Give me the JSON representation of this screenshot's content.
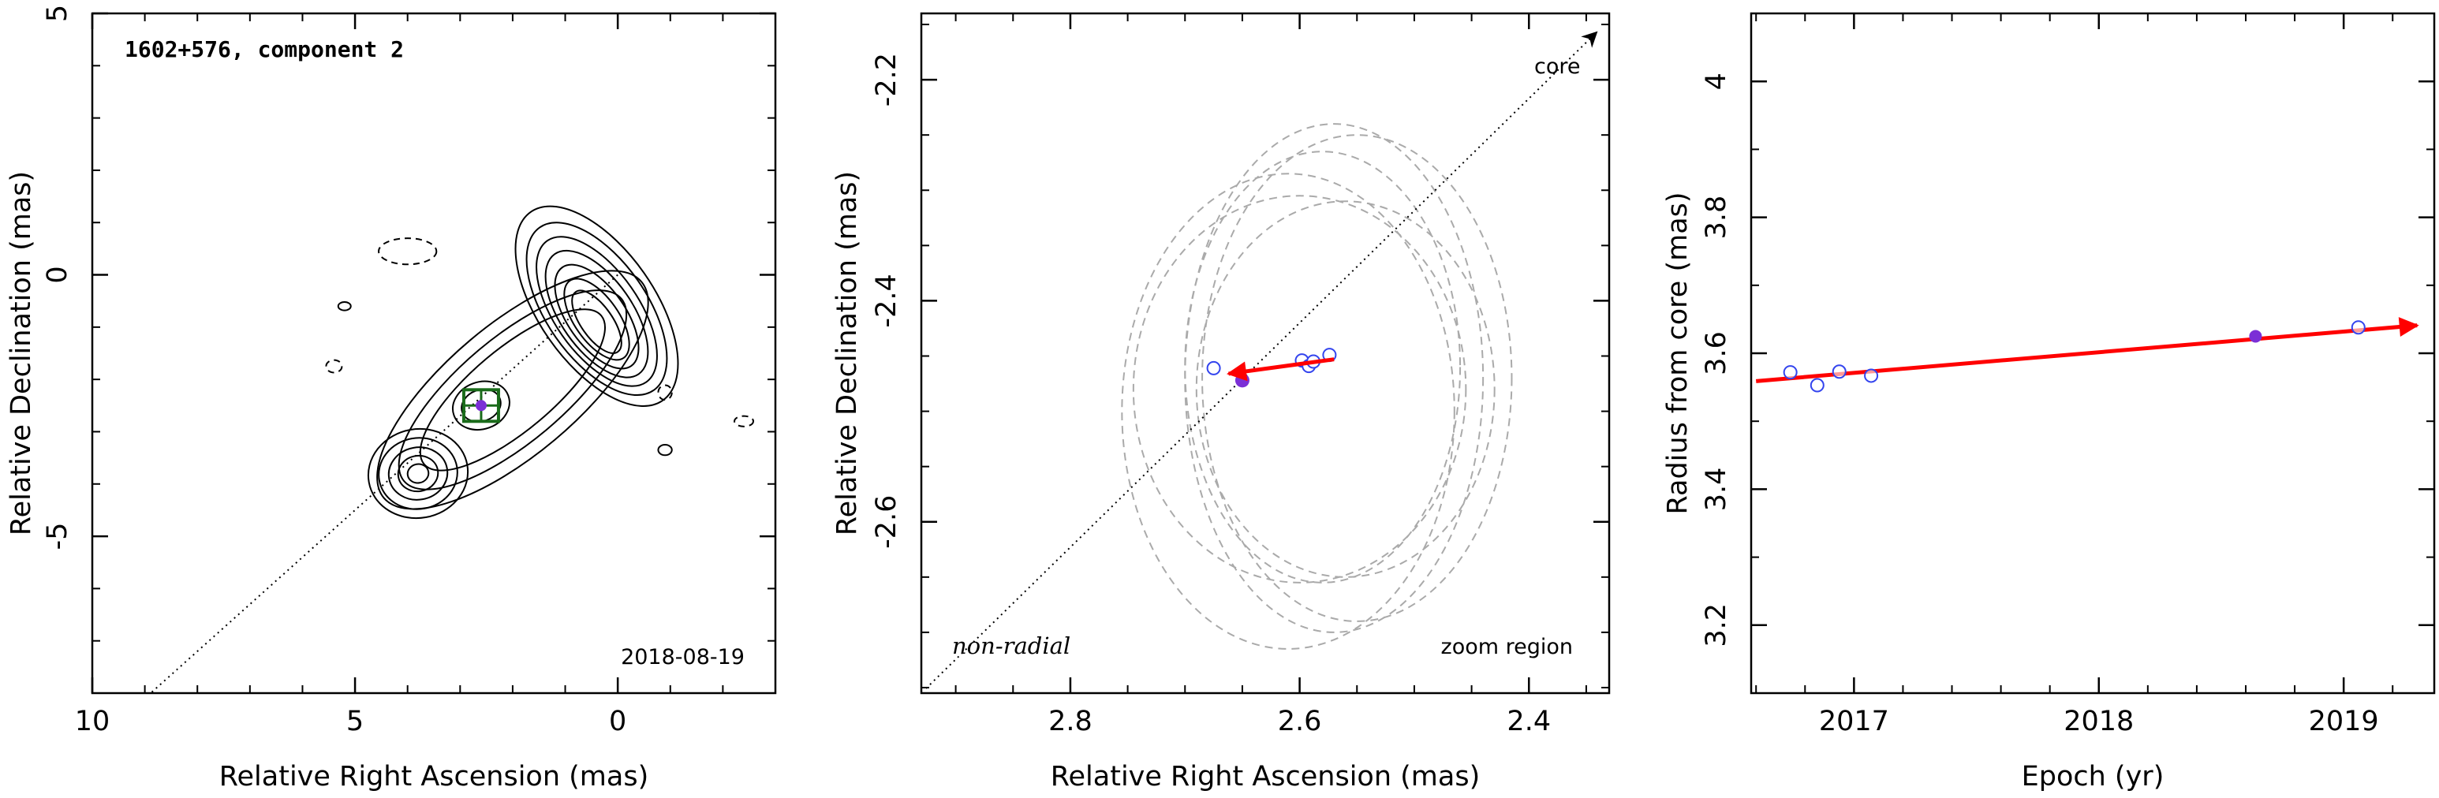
{
  "chart_data": [
    {
      "type": "contour",
      "title": "1602+576, component 2",
      "date": "2018-08-19",
      "xlabel": "Relative Right Ascension (mas)",
      "ylabel": "Relative Declination (mas)",
      "xlim": [
        10,
        -3
      ],
      "ylim": [
        -8,
        5
      ],
      "xticks": [
        10,
        5,
        0
      ],
      "yticks": [
        5,
        0,
        -5
      ],
      "marker": {
        "x": 2.6,
        "y": -2.5
      },
      "jet_direction_line": [
        [
          0,
          0
        ],
        [
          10,
          -9
        ]
      ],
      "colors": {
        "box": "#1a6b1a",
        "marker": "#7b2fd6",
        "contour": "#000000"
      }
    },
    {
      "type": "scatter",
      "region": "zoom region",
      "note": "non-radial",
      "core_label": "core",
      "xlabel": "Relative Right Ascension (mas)",
      "ylabel": "Relative Declination (mas)",
      "xlim": [
        2.93,
        2.33
      ],
      "ylim": [
        -2.755,
        -2.14
      ],
      "xticks": [
        "2.8",
        "2.6",
        "2.4"
      ],
      "yticks": [
        "-2.2",
        "-2.4",
        "-2.6"
      ],
      "points_open": [
        {
          "x": 2.675,
          "y": -2.461
        },
        {
          "x": 2.598,
          "y": -2.454
        },
        {
          "x": 2.592,
          "y": -2.459
        },
        {
          "x": 2.588,
          "y": -2.455
        },
        {
          "x": 2.574,
          "y": -2.449
        }
      ],
      "point_filled": {
        "x": 2.65,
        "y": -2.472
      },
      "motion_arrow": {
        "from": {
          "x": 2.57,
          "y": -2.453
        },
        "to": {
          "x": 2.662,
          "y": -2.466
        }
      },
      "ellipses_dashed": [
        {
          "cx": 2.6,
          "cy": -2.48,
          "rx": 0.145,
          "ry": 0.175
        },
        {
          "cx": 2.56,
          "cy": -2.48,
          "rx": 0.13,
          "ry": 0.17
        },
        {
          "cx": 2.57,
          "cy": -2.47,
          "rx": 0.13,
          "ry": 0.23
        },
        {
          "cx": 2.55,
          "cy": -2.47,
          "rx": 0.135,
          "ry": 0.22
        },
        {
          "cx": 2.58,
          "cy": -2.46,
          "rx": 0.12,
          "ry": 0.195
        },
        {
          "cx": 2.61,
          "cy": -2.5,
          "rx": 0.145,
          "ry": 0.215
        }
      ],
      "colors": {
        "arrow": "#ff0000",
        "open": "#3344ee",
        "filled": "#7b2fd6",
        "ellipse": "#aaaaaa"
      }
    },
    {
      "type": "scatter",
      "xlabel": "Epoch (yr)",
      "ylabel": "Radius from core (mas)",
      "xlim": [
        2016.58,
        2019.37
      ],
      "ylim": [
        3.1,
        4.1
      ],
      "xticks": [
        "2017",
        "2018",
        "2019"
      ],
      "yticks": [
        "3.2",
        "3.4",
        "3.6",
        "3.8",
        "4"
      ],
      "points_open": [
        {
          "x": 2016.74,
          "y": 3.572
        },
        {
          "x": 2016.85,
          "y": 3.553
        },
        {
          "x": 2016.94,
          "y": 3.573
        },
        {
          "x": 2017.07,
          "y": 3.567
        },
        {
          "x": 2019.06,
          "y": 3.638
        }
      ],
      "point_filled": {
        "x": 2018.64,
        "y": 3.625
      },
      "fit_arrow": {
        "from": {
          "x": 2016.6,
          "y": 3.559
        },
        "to": {
          "x": 2019.3,
          "y": 3.641
        }
      },
      "colors": {
        "arrow": "#ff0000",
        "open": "#3344ee",
        "filled": "#7b2fd6"
      }
    }
  ]
}
